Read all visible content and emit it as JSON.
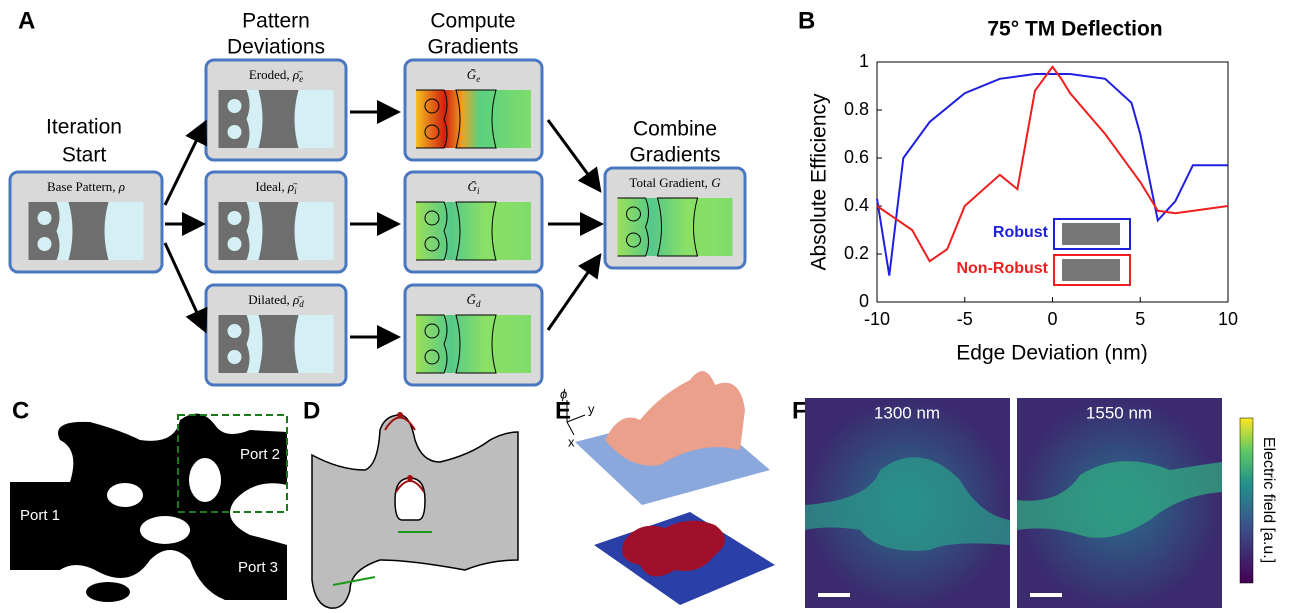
{
  "panel_letters": [
    "A",
    "B",
    "C",
    "D",
    "E",
    "F"
  ],
  "panel_a": {
    "headers": [
      [
        "Iteration",
        "Start"
      ],
      [
        "Pattern",
        "Deviations"
      ],
      [
        "Compute",
        "Gradients"
      ],
      [
        "Combine",
        "Gradients"
      ]
    ],
    "boxes": [
      {
        "name": "Base Pattern,",
        "symbol": "ρ",
        "sub": ""
      },
      {
        "name": "Eroded,",
        "symbol": "ρ̄",
        "sub": "e"
      },
      {
        "name": "Ideal,",
        "symbol": "ρ̄",
        "sub": "i"
      },
      {
        "name": "Dilated,",
        "symbol": "ρ̄",
        "sub": "d"
      },
      {
        "name": "",
        "symbol": "Ḡ",
        "sub": "e"
      },
      {
        "name": "",
        "symbol": "Ḡ",
        "sub": "i"
      },
      {
        "name": "",
        "symbol": "Ḡ",
        "sub": "d"
      },
      {
        "name": "Total Gradient,",
        "symbol": "G",
        "sub": ""
      }
    ]
  },
  "chart_data": {
    "type": "line",
    "title": "75° TM Deflection",
    "x_label": "Edge Deviation (nm)",
    "y_label": "Absolute Efficiency",
    "xlim": [
      -10,
      10
    ],
    "xticks": [
      -10,
      -5,
      0,
      5,
      10
    ],
    "ylim": [
      0,
      1
    ],
    "yticks": [
      0,
      0.2,
      0.4,
      0.6,
      0.8,
      1
    ],
    "series": [
      {
        "name": "Robust",
        "color": "#1f1fe0",
        "x": [
          -10,
          -9.3,
          -8.5,
          -7,
          -5,
          -3,
          -1,
          0,
          1,
          3,
          4.5,
          5,
          6,
          7,
          8,
          10
        ],
        "values": [
          0.43,
          0.11,
          0.6,
          0.75,
          0.87,
          0.93,
          0.95,
          0.95,
          0.95,
          0.93,
          0.83,
          0.7,
          0.34,
          0.42,
          0.57,
          0.57
        ]
      },
      {
        "name": "Non-Robust",
        "color": "#f01e1e",
        "x": [
          -10,
          -8,
          -7,
          -6,
          -5,
          -3,
          -2,
          -1,
          0,
          0.5,
          1,
          3,
          5,
          6,
          7,
          10
        ],
        "values": [
          0.4,
          0.3,
          0.17,
          0.22,
          0.4,
          0.53,
          0.47,
          0.88,
          0.98,
          0.93,
          0.87,
          0.7,
          0.5,
          0.38,
          0.37,
          0.4
        ]
      }
    ]
  },
  "panel_c": {
    "ports": [
      "Port 1",
      "Port 2",
      "Port 3"
    ]
  },
  "panel_e": {
    "axes": [
      "ϕ",
      "y",
      "x"
    ]
  },
  "panel_f": {
    "wavelengths": [
      "1300 nm",
      "1550 nm"
    ],
    "colorbar_label": "Electric field [a.u.]"
  }
}
